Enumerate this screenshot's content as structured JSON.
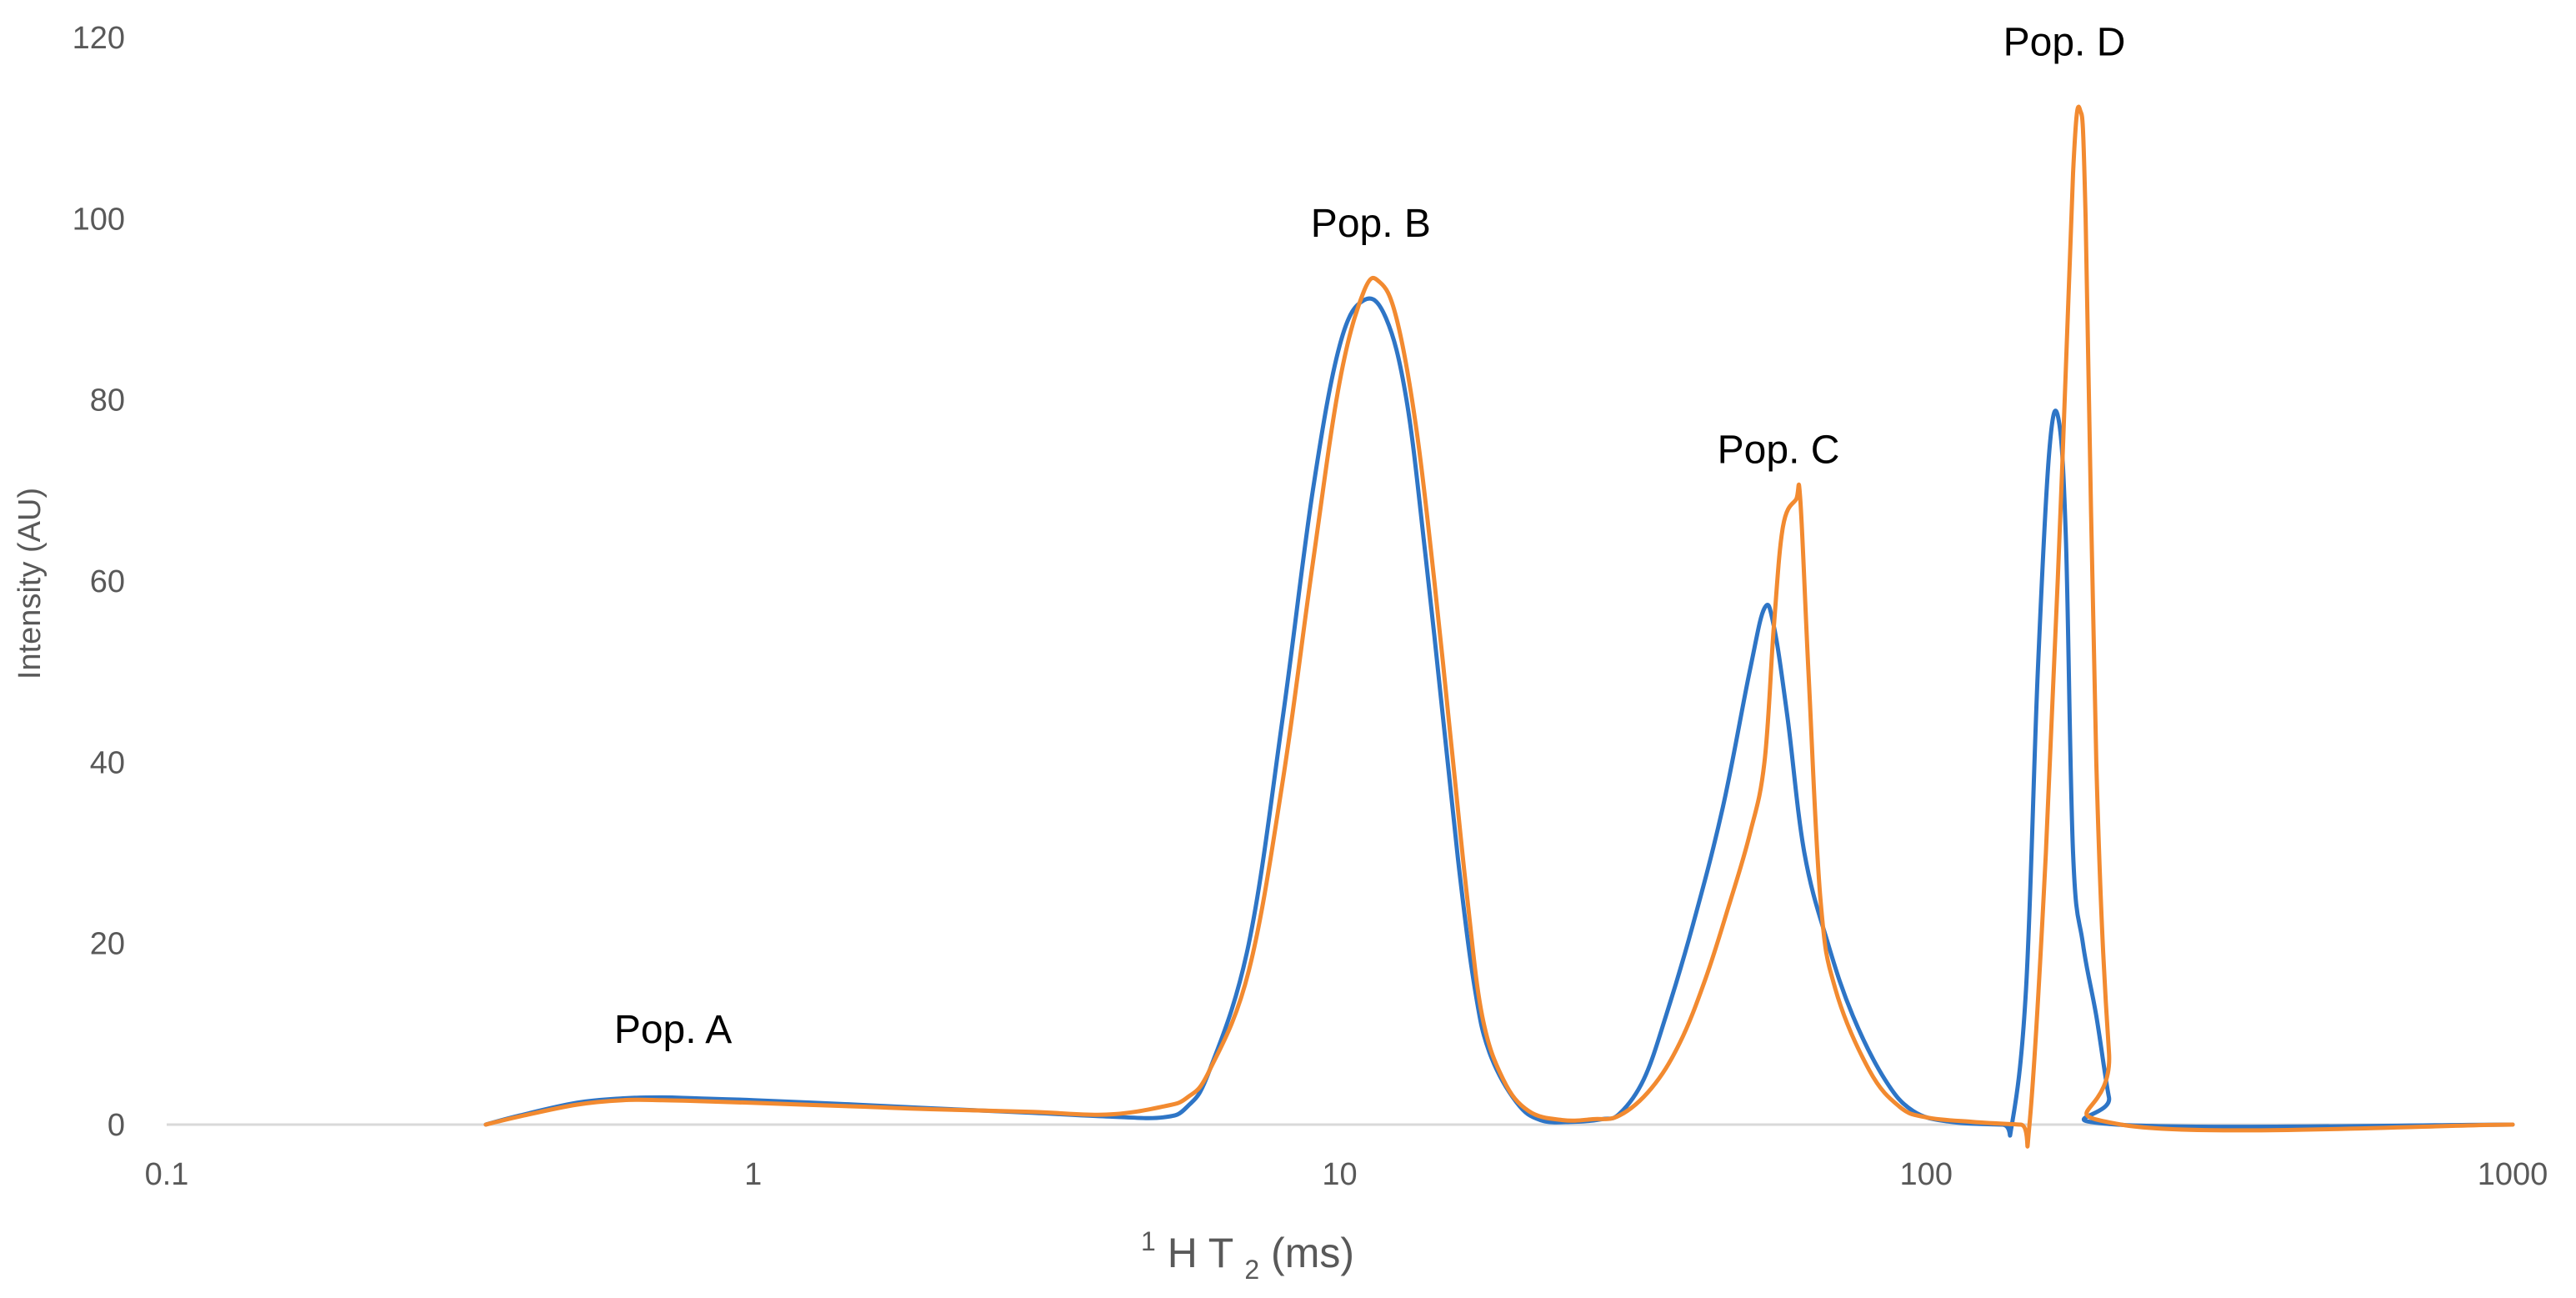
{
  "chart_data": {
    "type": "line",
    "xscale": "log",
    "xlim": [
      0.1,
      1000
    ],
    "ylim": [
      0,
      120
    ],
    "grid": false,
    "ylabel": "Intensity (AU)",
    "xlabel": {
      "sup": "1",
      "pre": "H T",
      "sub": "2",
      "post": " (ms)"
    },
    "x_ticks": [
      {
        "value": 0.1,
        "label": "0.1"
      },
      {
        "value": 1,
        "label": "1"
      },
      {
        "value": 10,
        "label": "10"
      },
      {
        "value": 100,
        "label": "100"
      },
      {
        "value": 1000,
        "label": "1000"
      }
    ],
    "y_ticks": [
      {
        "value": 0,
        "label": "0"
      },
      {
        "value": 20,
        "label": "20"
      },
      {
        "value": 40,
        "label": "40"
      },
      {
        "value": 60,
        "label": "60"
      },
      {
        "value": 80,
        "label": "80"
      },
      {
        "value": 100,
        "label": "100"
      },
      {
        "value": 120,
        "label": "120"
      }
    ],
    "annotations": [
      {
        "text": "Pop. A",
        "x": 0.73,
        "y": 9
      },
      {
        "text": "Pop. B",
        "x": 11.3,
        "y": 98
      },
      {
        "text": "Pop. C",
        "x": 56,
        "y": 73
      },
      {
        "text": "Pop. D",
        "x": 172,
        "y": 118
      }
    ],
    "series": [
      {
        "color": "#2E75C6",
        "points": [
          [
            0.35,
            0
          ],
          [
            0.4,
            1
          ],
          [
            0.5,
            2.4
          ],
          [
            0.6,
            2.9
          ],
          [
            0.7,
            3.0
          ],
          [
            0.8,
            2.9
          ],
          [
            1.0,
            2.7
          ],
          [
            1.5,
            2.2
          ],
          [
            2.0,
            1.8
          ],
          [
            3.0,
            1.3
          ],
          [
            4.0,
            0.9
          ],
          [
            5.0,
            0.8
          ],
          [
            5.5,
            2
          ],
          [
            6.0,
            6
          ],
          [
            7.0,
            20
          ],
          [
            8.0,
            45
          ],
          [
            9.0,
            70
          ],
          [
            10.0,
            86
          ],
          [
            11.0,
            91
          ],
          [
            12.0,
            89
          ],
          [
            13.0,
            80
          ],
          [
            14.0,
            63
          ],
          [
            15.0,
            45
          ],
          [
            16.0,
            28
          ],
          [
            17.0,
            15
          ],
          [
            18.0,
            8
          ],
          [
            20.0,
            2.5
          ],
          [
            22.0,
            0.5
          ],
          [
            25.0,
            0.3
          ],
          [
            28.0,
            0.6
          ],
          [
            30.0,
            1.2
          ],
          [
            33.0,
            5
          ],
          [
            36.0,
            12
          ],
          [
            40.0,
            22
          ],
          [
            45.0,
            35
          ],
          [
            50.0,
            50
          ],
          [
            53.0,
            57
          ],
          [
            55.0,
            55
          ],
          [
            58.0,
            45
          ],
          [
            62.0,
            30
          ],
          [
            68.0,
            20
          ],
          [
            75.0,
            12
          ],
          [
            85.0,
            5
          ],
          [
            95.0,
            1.5
          ],
          [
            110.0,
            0.3
          ],
          [
            135.0,
            0
          ],
          [
            140.0,
            0
          ],
          [
            148.0,
            15
          ],
          [
            155.0,
            50
          ],
          [
            162.0,
            74
          ],
          [
            168.0,
            78
          ],
          [
            173.0,
            65
          ],
          [
            178.0,
            30
          ],
          [
            185.0,
            20
          ],
          [
            195.0,
            12
          ],
          [
            205.0,
            3
          ],
          [
            212.0,
            0
          ],
          [
            1000,
            0
          ]
        ]
      },
      {
        "color": "#F28A30",
        "points": [
          [
            0.35,
            0
          ],
          [
            0.4,
            0.9
          ],
          [
            0.5,
            2.2
          ],
          [
            0.6,
            2.7
          ],
          [
            0.7,
            2.7
          ],
          [
            0.8,
            2.6
          ],
          [
            1.0,
            2.4
          ],
          [
            1.5,
            2.0
          ],
          [
            2.0,
            1.7
          ],
          [
            3.0,
            1.4
          ],
          [
            4.0,
            1.1
          ],
          [
            5.0,
            2.0
          ],
          [
            5.5,
            3
          ],
          [
            6.0,
            6
          ],
          [
            7.0,
            17
          ],
          [
            8.0,
            38
          ],
          [
            9.0,
            62
          ],
          [
            10.0,
            82
          ],
          [
            11.0,
            92
          ],
          [
            11.7,
            93
          ],
          [
            12.5,
            89
          ],
          [
            13.5,
            77
          ],
          [
            14.5,
            60
          ],
          [
            15.5,
            42
          ],
          [
            16.5,
            25
          ],
          [
            17.5,
            12
          ],
          [
            19.0,
            5
          ],
          [
            21.0,
            1.5
          ],
          [
            24.0,
            0.5
          ],
          [
            27.0,
            0.6
          ],
          [
            30.0,
            1.0
          ],
          [
            34.0,
            4
          ],
          [
            38.0,
            9
          ],
          [
            42.0,
            16
          ],
          [
            46.0,
            24
          ],
          [
            50.0,
            32
          ],
          [
            53.0,
            40
          ],
          [
            55.0,
            55
          ],
          [
            57.0,
            66
          ],
          [
            60.0,
            69
          ],
          [
            61.0,
            69
          ],
          [
            63.0,
            50
          ],
          [
            66.0,
            25
          ],
          [
            70.0,
            15
          ],
          [
            80.0,
            6
          ],
          [
            90.0,
            2
          ],
          [
            100.0,
            0.8
          ],
          [
            120.0,
            0.3
          ],
          [
            145.0,
            0
          ],
          [
            150.0,
            0
          ],
          [
            160.0,
            30
          ],
          [
            170.0,
            70
          ],
          [
            178.0,
            105
          ],
          [
            183.0,
            112
          ],
          [
            187.0,
            100
          ],
          [
            195.0,
            40
          ],
          [
            205.0,
            8
          ],
          [
            215.0,
            0
          ],
          [
            1000,
            0
          ]
        ]
      }
    ]
  }
}
